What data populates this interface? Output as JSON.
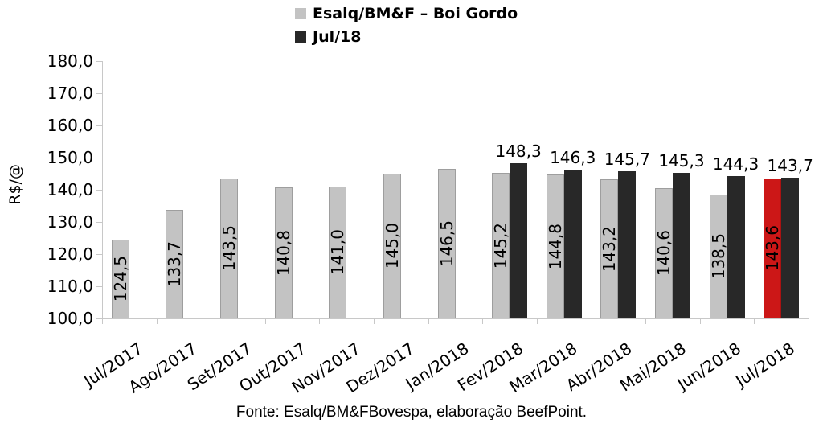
{
  "legend": {
    "items": [
      {
        "label": "Esalq/BM&F – Boi Gordo"
      },
      {
        "label": "Jul/18"
      }
    ]
  },
  "chart_data": {
    "type": "bar",
    "title": "",
    "ylabel": "R$/@",
    "xlabel": "",
    "ylim": [
      100,
      180
    ],
    "ytick_step": 10,
    "decimal_separator": ",",
    "grid": false,
    "legend_position": "top",
    "categories": [
      "Jul/2017",
      "Ago/2017",
      "Set/2017",
      "Out/2017",
      "Nov/2017",
      "Dez/2017",
      "Jan/2018",
      "Fev/2018",
      "Mar/2018",
      "Abr/2018",
      "Mai/2018",
      "Jun/2018",
      "Jul/2018"
    ],
    "series": [
      {
        "name": "Esalq/BM&F – Boi Gordo",
        "color": "#c3c3c3",
        "values": [
          124.5,
          133.7,
          143.5,
          140.8,
          141.0,
          145.0,
          146.5,
          145.2,
          144.8,
          143.2,
          140.6,
          138.5,
          143.6
        ]
      },
      {
        "name": "Jul/18",
        "color": "#282828",
        "values": [
          null,
          null,
          null,
          null,
          null,
          null,
          null,
          148.3,
          146.3,
          145.7,
          145.3,
          144.3,
          143.7
        ]
      }
    ],
    "highlight": {
      "series": 0,
      "index": 12,
      "category": "Jul/2018",
      "color": "#cc1717"
    },
    "axis_color": "#c8c8c8"
  },
  "footer": {
    "text": "Fonte: Esalq/BM&FBovespa, elaboração BeefPoint."
  }
}
